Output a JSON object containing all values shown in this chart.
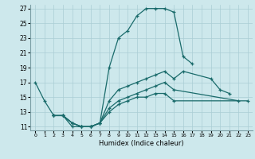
{
  "xlabel": "Humidex (Indice chaleur)",
  "bg_color": "#cde8ec",
  "grid_color": "#aacdd4",
  "line_color": "#1a6b6b",
  "xlim": [
    -0.5,
    23.5
  ],
  "ylim": [
    10.5,
    27.5
  ],
  "xticks": [
    0,
    1,
    2,
    3,
    4,
    5,
    6,
    7,
    8,
    9,
    10,
    11,
    12,
    13,
    14,
    15,
    16,
    17,
    18,
    19,
    20,
    21,
    22,
    23
  ],
  "yticks": [
    11,
    13,
    15,
    17,
    19,
    21,
    23,
    25,
    27
  ],
  "lines": [
    {
      "segments": [
        {
          "x": [
            0,
            1,
            2,
            3,
            4,
            5,
            6,
            7,
            8,
            9,
            10,
            11,
            12,
            13,
            14,
            15,
            16,
            17
          ],
          "y": [
            17,
            14.5,
            12.5,
            12.5,
            11,
            11,
            11,
            11.5,
            19,
            23,
            24,
            26,
            27,
            27,
            27,
            26.5,
            20.5,
            19.5
          ]
        }
      ]
    },
    {
      "segments": [
        {
          "x": [
            2,
            3,
            4,
            5,
            6,
            7,
            8,
            9,
            10,
            11,
            12,
            13,
            14,
            15,
            16,
            19,
            20,
            21
          ],
          "y": [
            12.5,
            12.5,
            11.5,
            11,
            11,
            11.5,
            14.5,
            16,
            16.5,
            17,
            17.5,
            18,
            18.5,
            17.5,
            18.5,
            17.5,
            16,
            15.5
          ]
        }
      ]
    },
    {
      "segments": [
        {
          "x": [
            2,
            3,
            4,
            5,
            6,
            7,
            8,
            9,
            10,
            11,
            12,
            13,
            14,
            15,
            22
          ],
          "y": [
            12.5,
            12.5,
            11.5,
            11,
            11,
            11.5,
            13.5,
            14.5,
            15,
            15.5,
            16,
            16.5,
            17,
            16,
            14.5
          ]
        }
      ]
    },
    {
      "segments": [
        {
          "x": [
            2,
            3,
            4,
            5,
            6,
            7,
            8,
            9,
            10,
            11,
            12,
            13,
            14,
            15,
            23
          ],
          "y": [
            12.5,
            12.5,
            11.5,
            11,
            11,
            11.5,
            13,
            14,
            14.5,
            15,
            15,
            15.5,
            15.5,
            14.5,
            14.5
          ]
        }
      ]
    }
  ]
}
